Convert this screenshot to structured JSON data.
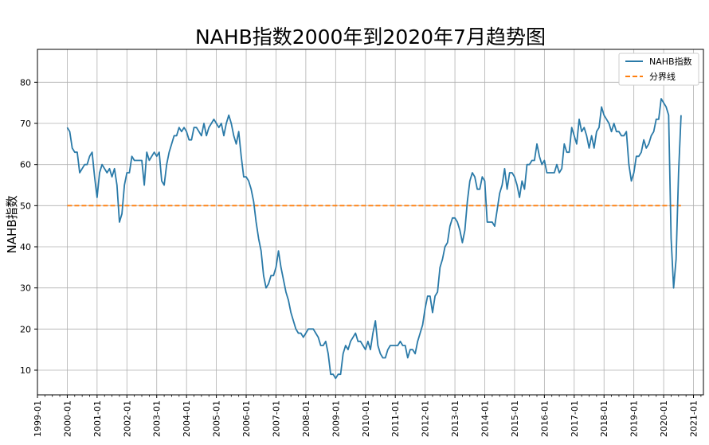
{
  "chart_data": {
    "type": "line",
    "title": "NAHB指数2000年到2020年7月趋势图",
    "xlabel": "",
    "ylabel": "NAHB指数",
    "x_ticks": [
      "1999-01",
      "2000-01",
      "2001-01",
      "2002-01",
      "2003-01",
      "2004-01",
      "2005-01",
      "2006-01",
      "2007-01",
      "2008-01",
      "2009-01",
      "2010-01",
      "2011-01",
      "2012-01",
      "2013-01",
      "2014-01",
      "2015-01",
      "2016-01",
      "2017-01",
      "2018-01",
      "2019-01",
      "2020-01",
      "2021-01"
    ],
    "y_ticks": [
      10,
      20,
      30,
      40,
      50,
      60,
      70,
      80
    ],
    "xlim": [
      "1999-01",
      "2021-05"
    ],
    "ylim": [
      4,
      88
    ],
    "grid": true,
    "legend_position": "top-right",
    "start_month": "2000-01",
    "series": [
      {
        "name": "NAHB指数",
        "color": "#2a7aa8",
        "style": "solid",
        "values": [
          69,
          68,
          64,
          63,
          63,
          58,
          59,
          60,
          60,
          62,
          63,
          57,
          52,
          58,
          60,
          59,
          58,
          59,
          57,
          59,
          55,
          46,
          48,
          55,
          58,
          58,
          62,
          61,
          61,
          61,
          61,
          55,
          63,
          61,
          62,
          63,
          62,
          63,
          56,
          55,
          60,
          63,
          65,
          67,
          67,
          69,
          68,
          69,
          68,
          66,
          66,
          69,
          69,
          68,
          67,
          70,
          67,
          69,
          70,
          71,
          70,
          69,
          70,
          67,
          70,
          72,
          70,
          67,
          65,
          68,
          62,
          57,
          57,
          56,
          54,
          51,
          46,
          42,
          39,
          33,
          30,
          31,
          33,
          33,
          35,
          39,
          35,
          32,
          29,
          27,
          24,
          22,
          20,
          19,
          19,
          18,
          19,
          20,
          20,
          20,
          19,
          18,
          16,
          16,
          17,
          14,
          9,
          9,
          8,
          9,
          9,
          14,
          16,
          15,
          17,
          18,
          19,
          17,
          17,
          16,
          15,
          17,
          15,
          19,
          22,
          16,
          14,
          13,
          13,
          15,
          16,
          16,
          16,
          16,
          17,
          16,
          16,
          13,
          15,
          15,
          14,
          17,
          19,
          21,
          25,
          28,
          28,
          24,
          28,
          29,
          35,
          37,
          40,
          41,
          45,
          47,
          47,
          46,
          44,
          41,
          44,
          51,
          56,
          58,
          57,
          54,
          54,
          57,
          56,
          46,
          46,
          46,
          45,
          49,
          53,
          55,
          59,
          54,
          58,
          58,
          57,
          55,
          52,
          56,
          54,
          60,
          60,
          61,
          61,
          65,
          62,
          60,
          61,
          58,
          58,
          58,
          58,
          60,
          58,
          59,
          65,
          63,
          63,
          69,
          67,
          65,
          71,
          68,
          69,
          67,
          64,
          67,
          64,
          68,
          69,
          74,
          72,
          71,
          70,
          68,
          70,
          68,
          68,
          67,
          67,
          68,
          60,
          56,
          58,
          62,
          62,
          63,
          66,
          64,
          65,
          67,
          68,
          71,
          71,
          76,
          75,
          74,
          72,
          42,
          30,
          37,
          58,
          72
        ]
      },
      {
        "name": "分界线",
        "color": "#ff7f0e",
        "style": "dashed",
        "constant": 50
      }
    ]
  }
}
